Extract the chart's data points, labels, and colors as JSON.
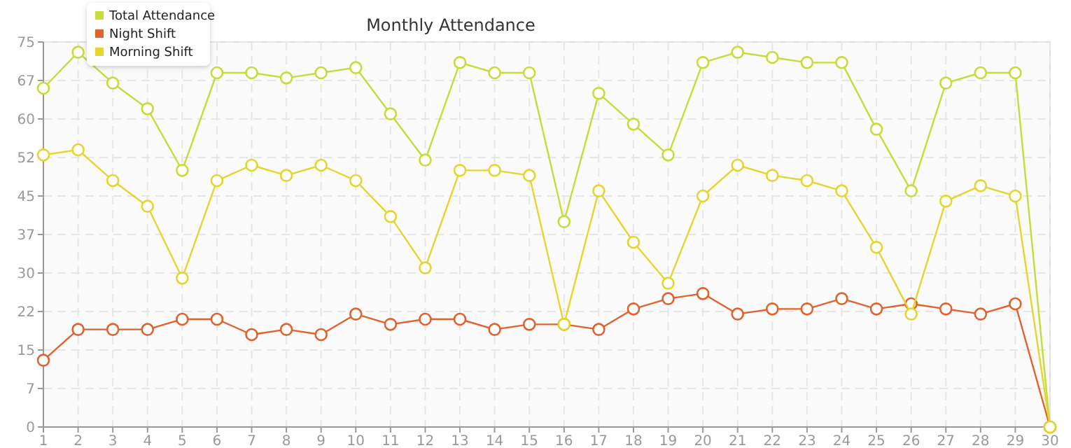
{
  "chart_data": {
    "type": "line",
    "title": "Monthly Attendance",
    "x": [
      1,
      2,
      3,
      4,
      5,
      6,
      7,
      8,
      9,
      10,
      11,
      12,
      13,
      14,
      15,
      16,
      17,
      18,
      19,
      20,
      21,
      22,
      23,
      24,
      25,
      26,
      27,
      28,
      29,
      30
    ],
    "xlim": [
      1,
      30
    ],
    "xticks": [
      1,
      2,
      3,
      4,
      5,
      6,
      7,
      8,
      9,
      10,
      11,
      12,
      13,
      14,
      15,
      16,
      17,
      18,
      19,
      20,
      21,
      22,
      23,
      24,
      25,
      26,
      27,
      28,
      29,
      30
    ],
    "ylim": [
      0,
      75
    ],
    "yticks": [
      0,
      {
        "value": 7.5,
        "label": "7"
      },
      15,
      {
        "value": 22.5,
        "label": "22"
      },
      30,
      {
        "value": 37.5,
        "label": "37"
      },
      45,
      {
        "value": 52.5,
        "label": "52"
      },
      60,
      {
        "value": 67.5,
        "label": "67"
      },
      75
    ],
    "grid": true,
    "legend": "top left",
    "marker": "circle",
    "line_style": "solid",
    "series": [
      {
        "name": "Total Attendance",
        "color": "#c3dd3a",
        "values": [
          66,
          73,
          67,
          62,
          50,
          69,
          69,
          68,
          69,
          70,
          61,
          52,
          71,
          69,
          69,
          40,
          65,
          59,
          53,
          71,
          73,
          72,
          71,
          71,
          58,
          46,
          67,
          69,
          69,
          0
        ]
      },
      {
        "name": "Night Shift",
        "color": "#e0622e",
        "values": [
          13,
          19,
          19,
          19,
          21,
          21,
          18,
          19,
          18,
          22,
          20,
          21,
          21,
          19,
          20,
          20,
          19,
          23,
          25,
          26,
          22,
          23,
          23,
          25,
          23,
          24,
          23,
          22,
          24,
          0
        ]
      },
      {
        "name": "Morning Shift",
        "color": "#e3d630",
        "values": [
          53,
          54,
          48,
          43,
          29,
          48,
          51,
          49,
          51,
          48,
          41,
          31,
          50,
          50,
          49,
          20,
          46,
          36,
          28,
          45,
          51,
          49,
          48,
          46,
          35,
          22,
          44,
          47,
          45,
          0
        ]
      }
    ]
  }
}
